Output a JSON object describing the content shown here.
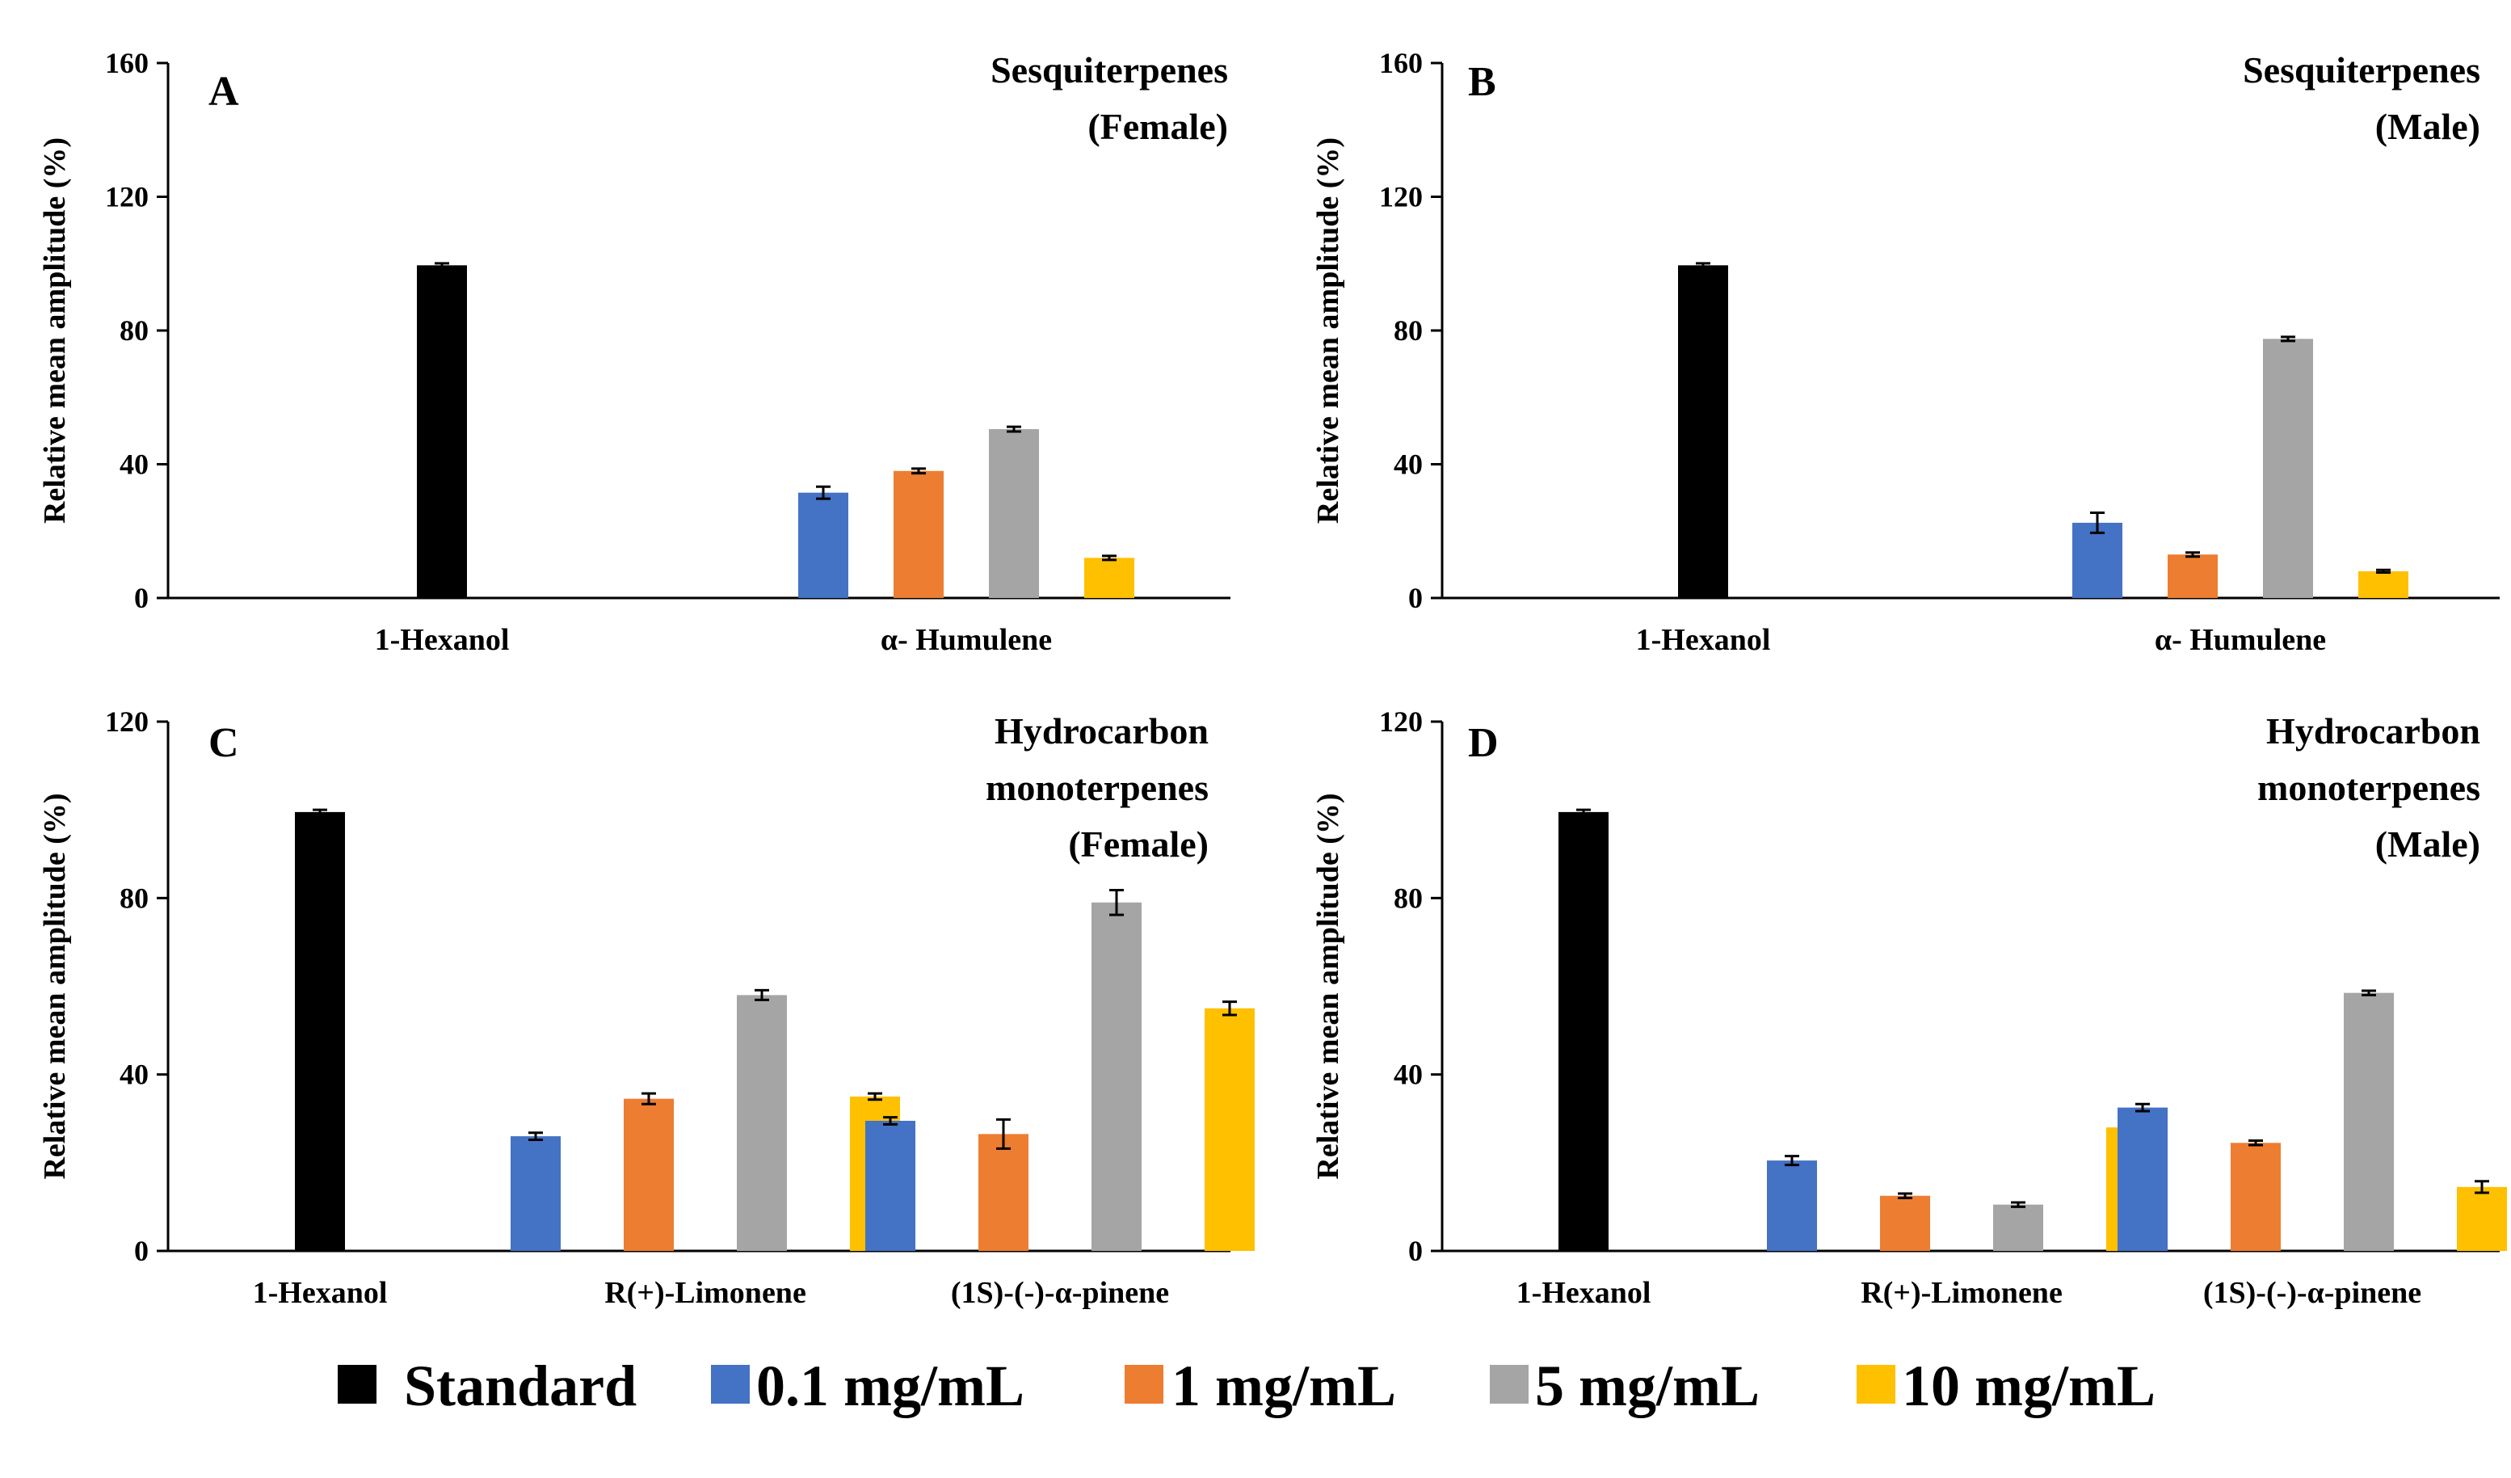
{
  "legend": [
    {
      "label": "Standard",
      "color": "#000000"
    },
    {
      "label": "0.1 mg/mL",
      "color": "#4472C4"
    },
    {
      "label": "1 mg/mL",
      "color": "#ED7D31"
    },
    {
      "label": "5 mg/mL",
      "color": "#A5A5A5"
    },
    {
      "label": "10 mg/mL",
      "color": "#FFC000"
    }
  ],
  "chart_data": [
    {
      "panel": "A",
      "type": "bar",
      "title": [
        "Sesquiterpenes",
        "(Female)"
      ],
      "ylabel": "Relative mean amplitude (%)",
      "ylim": [
        0,
        160
      ],
      "yticks": [
        0,
        40,
        80,
        120,
        160
      ],
      "categories": [
        "1-Hexanol",
        "α- Humulene"
      ],
      "series": [
        {
          "name": "Standard",
          "values": [
            99.5,
            null
          ],
          "errors": [
            0.6,
            null
          ]
        },
        {
          "name": "0.1 mg/mL",
          "values": [
            null,
            31.5
          ],
          "errors": [
            null,
            1.8
          ]
        },
        {
          "name": "1 mg/mL",
          "values": [
            null,
            38
          ],
          "errors": [
            null,
            0.7
          ]
        },
        {
          "name": "5 mg/mL",
          "values": [
            null,
            50.5
          ],
          "errors": [
            null,
            0.7
          ]
        },
        {
          "name": "10 mg/mL",
          "values": [
            null,
            12
          ],
          "errors": [
            null,
            0.6
          ]
        }
      ]
    },
    {
      "panel": "B",
      "type": "bar",
      "title": [
        "Sesquiterpenes",
        "(Male)"
      ],
      "ylabel": "Relative mean amplitude (%)",
      "ylim": [
        0,
        160
      ],
      "yticks": [
        0,
        40,
        80,
        120,
        160
      ],
      "categories": [
        "1-Hexanol",
        "α- Humulene"
      ],
      "series": [
        {
          "name": "Standard",
          "values": [
            99.5,
            null
          ],
          "errors": [
            0.6,
            null
          ]
        },
        {
          "name": "0.1 mg/mL",
          "values": [
            null,
            22.5
          ],
          "errors": [
            null,
            3
          ]
        },
        {
          "name": "1 mg/mL",
          "values": [
            null,
            13
          ],
          "errors": [
            null,
            0.6
          ]
        },
        {
          "name": "5 mg/mL",
          "values": [
            null,
            77.5
          ],
          "errors": [
            null,
            0.6
          ]
        },
        {
          "name": "10 mg/mL",
          "values": [
            null,
            8
          ],
          "errors": [
            null,
            0.4
          ]
        }
      ]
    },
    {
      "panel": "C",
      "type": "bar",
      "title": [
        "Hydrocarbon",
        "monoterpenes",
        "(Female)"
      ],
      "ylabel": "Relative mean amplitude (%)",
      "ylim": [
        0,
        120
      ],
      "yticks": [
        0,
        40,
        80,
        120
      ],
      "categories": [
        "1-Hexanol",
        "R(+)-Limonene",
        "(1S)-(-)-α-pinene"
      ],
      "series": [
        {
          "name": "Standard",
          "values": [
            99.5,
            null,
            null
          ],
          "errors": [
            0.5,
            null,
            null
          ]
        },
        {
          "name": "0.1 mg/mL",
          "values": [
            null,
            26,
            29.5
          ],
          "errors": [
            null,
            0.8,
            0.8
          ]
        },
        {
          "name": "1 mg/mL",
          "values": [
            null,
            34.5,
            26.5
          ],
          "errors": [
            null,
            1.2,
            3.3
          ]
        },
        {
          "name": "5 mg/mL",
          "values": [
            null,
            58,
            79
          ],
          "errors": [
            null,
            1.1,
            2.8
          ]
        },
        {
          "name": "10 mg/mL",
          "values": [
            null,
            35,
            55
          ],
          "errors": [
            null,
            0.7,
            1.5
          ]
        }
      ]
    },
    {
      "panel": "D",
      "type": "bar",
      "title": [
        "Hydrocarbon",
        "monoterpenes",
        "(Male)"
      ],
      "ylabel": "Relative mean amplitude (%)",
      "ylim": [
        0,
        120
      ],
      "yticks": [
        0,
        40,
        80,
        120
      ],
      "categories": [
        "1-Hexanol",
        "R(+)-Limonene",
        "(1S)-(-)-α-pinene"
      ],
      "series": [
        {
          "name": "Standard",
          "values": [
            99.5,
            null,
            null
          ],
          "errors": [
            0.5,
            null,
            null
          ]
        },
        {
          "name": "0.1 mg/mL",
          "values": [
            null,
            20.5,
            32.5
          ],
          "errors": [
            null,
            1,
            0.8
          ]
        },
        {
          "name": "1 mg/mL",
          "values": [
            null,
            12.5,
            24.5
          ],
          "errors": [
            null,
            0.5,
            0.5
          ]
        },
        {
          "name": "5 mg/mL",
          "values": [
            null,
            10.5,
            58.5
          ],
          "errors": [
            null,
            0.5,
            0.5
          ]
        },
        {
          "name": "10 mg/mL",
          "values": [
            null,
            28,
            14.5
          ],
          "errors": [
            null,
            1.6,
            1.3
          ]
        }
      ]
    }
  ]
}
